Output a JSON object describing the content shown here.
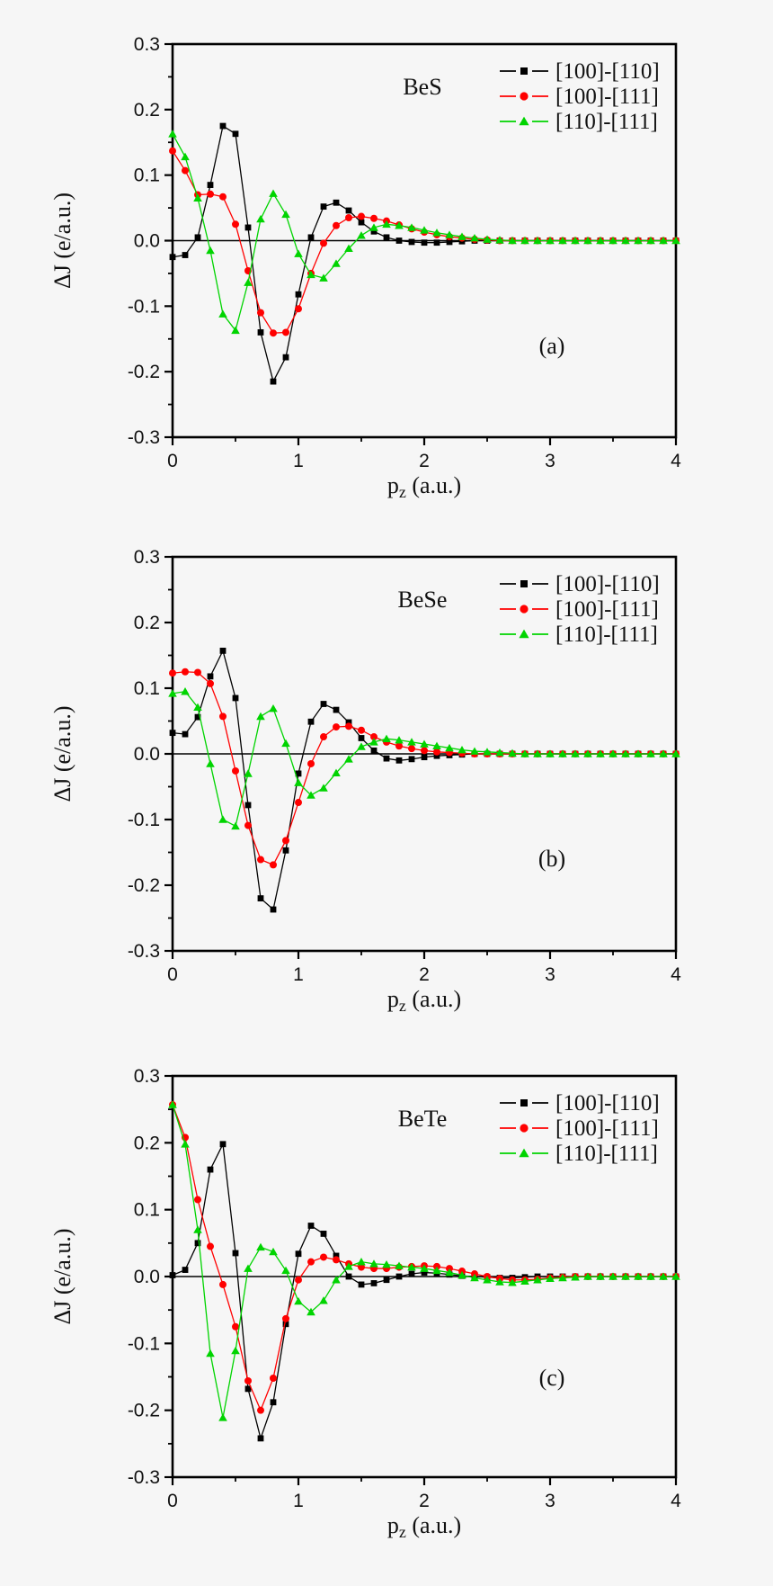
{
  "figure": {
    "background_color": "#f6f6f6",
    "frame_color": "#000000",
    "y_axis_label": "ΔJ (e/a.u.)",
    "x_axis_label_base": "p",
    "x_axis_label_sub": "z",
    "x_axis_label_unit": " (a.u.)",
    "y_tick_labels": [
      "0.3",
      "0.2",
      "0.1",
      "0.0",
      "-0.1",
      "-0.2",
      "-0.3"
    ],
    "x_tick_labels": [
      "0",
      "1",
      "2",
      "3",
      "4"
    ]
  },
  "chart_data": [
    {
      "type": "line",
      "title": "BeS",
      "panel_label": "(a)",
      "xlabel": "p_z (a.u.)",
      "ylabel": "ΔJ (e/a.u.)",
      "xlim": [
        0,
        4
      ],
      "ylim": [
        -0.3,
        0.3
      ],
      "x_start": 0,
      "x_step": 0.1,
      "grid": false,
      "legend_position": "top-right",
      "legend_entries": [
        "[100]-[110]",
        "[100]-[111]",
        "[110]-[111]"
      ],
      "series": [
        {
          "name": "[100]-[110]",
          "color": "#000000",
          "marker": "square",
          "values": [
            -0.025,
            -0.022,
            0.005,
            0.085,
            0.175,
            0.163,
            0.02,
            -0.14,
            -0.215,
            -0.178,
            -0.082,
            0.005,
            0.052,
            0.058,
            0.046,
            0.028,
            0.014,
            0.005,
            0.0,
            -0.002,
            -0.003,
            -0.003,
            -0.002,
            -0.001,
            0,
            0,
            0,
            0,
            0,
            0,
            0,
            0,
            0,
            0,
            0,
            0,
            0,
            0,
            0,
            0,
            0
          ]
        },
        {
          "name": "[100]-[111]",
          "color": "#ff0000",
          "marker": "circle",
          "values": [
            0.137,
            0.107,
            0.07,
            0.071,
            0.067,
            0.025,
            -0.046,
            -0.11,
            -0.141,
            -0.14,
            -0.104,
            -0.05,
            -0.004,
            0.023,
            0.035,
            0.037,
            0.034,
            0.03,
            0.024,
            0.018,
            0.013,
            0.009,
            0.006,
            0.004,
            0.002,
            0.001,
            0,
            0,
            0,
            0,
            0,
            0,
            0,
            0,
            0,
            0,
            0,
            0,
            0,
            0,
            0
          ]
        },
        {
          "name": "[110]-[111]",
          "color": "#00d400",
          "marker": "triangle",
          "values": [
            0.163,
            0.128,
            0.065,
            -0.015,
            -0.112,
            -0.137,
            -0.064,
            0.033,
            0.072,
            0.04,
            -0.02,
            -0.052,
            -0.057,
            -0.035,
            -0.012,
            0.008,
            0.02,
            0.025,
            0.023,
            0.02,
            0.016,
            0.012,
            0.009,
            0.006,
            0.004,
            0.002,
            0.001,
            0,
            0,
            0,
            0,
            0,
            0,
            0,
            0,
            0,
            0,
            0,
            0,
            0,
            0
          ]
        }
      ]
    },
    {
      "type": "line",
      "title": "BeSe",
      "panel_label": "(b)",
      "xlabel": "p_z (a.u.)",
      "ylabel": "ΔJ (e/a.u.)",
      "xlim": [
        0,
        4
      ],
      "ylim": [
        -0.3,
        0.3
      ],
      "x_start": 0,
      "x_step": 0.1,
      "grid": false,
      "legend_position": "top-right",
      "legend_entries": [
        "[100]-[110]",
        "[100]-[111]",
        "[110]-[111]"
      ],
      "series": [
        {
          "name": "[100]-[110]",
          "color": "#000000",
          "marker": "square",
          "values": [
            0.032,
            0.03,
            0.056,
            0.118,
            0.157,
            0.085,
            -0.078,
            -0.22,
            -0.237,
            -0.147,
            -0.03,
            0.049,
            0.076,
            0.067,
            0.048,
            0.024,
            0.005,
            -0.007,
            -0.01,
            -0.008,
            -0.005,
            -0.003,
            -0.002,
            -0.001,
            0,
            0,
            0,
            0,
            0,
            0,
            0,
            0,
            0,
            0,
            0,
            0,
            0,
            0,
            0,
            0,
            0
          ]
        },
        {
          "name": "[100]-[111]",
          "color": "#ff0000",
          "marker": "circle",
          "values": [
            0.123,
            0.125,
            0.124,
            0.107,
            0.057,
            -0.026,
            -0.109,
            -0.161,
            -0.169,
            -0.132,
            -0.074,
            -0.015,
            0.026,
            0.041,
            0.042,
            0.036,
            0.026,
            0.018,
            0.012,
            0.008,
            0.005,
            0.003,
            0.002,
            0.001,
            0,
            0,
            0,
            0,
            0,
            0,
            0,
            0,
            0,
            0,
            0,
            0,
            0,
            0,
            0,
            0,
            0
          ]
        },
        {
          "name": "[110]-[111]",
          "color": "#00d400",
          "marker": "triangle",
          "values": [
            0.092,
            0.095,
            0.071,
            -0.015,
            -0.1,
            -0.11,
            -0.03,
            0.057,
            0.069,
            0.016,
            -0.044,
            -0.063,
            -0.052,
            -0.029,
            -0.008,
            0.011,
            0.018,
            0.023,
            0.021,
            0.018,
            0.015,
            0.012,
            0.009,
            0.006,
            0.004,
            0.003,
            0.002,
            0.001,
            0,
            0,
            0,
            0,
            0,
            0,
            0,
            0,
            0,
            0,
            0,
            0,
            0
          ]
        }
      ]
    },
    {
      "type": "line",
      "title": "BeTe",
      "panel_label": "(c)",
      "xlabel": "p_z (a.u.)",
      "ylabel": "ΔJ (e/a.u.)",
      "xlim": [
        0,
        4
      ],
      "ylim": [
        -0.3,
        0.3
      ],
      "x_start": 0,
      "x_step": 0.1,
      "grid": false,
      "legend_position": "top-right",
      "legend_entries": [
        "[100]-[110]",
        "[100]-[111]",
        "[110]-[111]"
      ],
      "series": [
        {
          "name": "[100]-[110]",
          "color": "#000000",
          "marker": "square",
          "values": [
            0.002,
            0.01,
            0.05,
            0.16,
            0.198,
            0.035,
            -0.168,
            -0.242,
            -0.188,
            -0.071,
            0.034,
            0.076,
            0.064,
            0.031,
            0.0,
            -0.012,
            -0.01,
            -0.005,
            0.0,
            0.004,
            0.006,
            0.005,
            0.003,
            0.001,
            0,
            -0.001,
            -0.002,
            -0.002,
            -0.001,
            0,
            0,
            0,
            0,
            0,
            0,
            0,
            0,
            0,
            0,
            0,
            0
          ]
        },
        {
          "name": "[100]-[111]",
          "color": "#ff0000",
          "marker": "circle",
          "values": [
            0.257,
            0.208,
            0.115,
            0.045,
            -0.012,
            -0.075,
            -0.156,
            -0.2,
            -0.152,
            -0.063,
            -0.005,
            0.022,
            0.029,
            0.025,
            0.019,
            0.014,
            0.012,
            0.012,
            0.014,
            0.015,
            0.016,
            0.015,
            0.012,
            0.008,
            0.004,
            0.0,
            -0.003,
            -0.005,
            -0.005,
            -0.004,
            -0.002,
            -0.001,
            0,
            0,
            0,
            0,
            0,
            0,
            0,
            0,
            0
          ]
        },
        {
          "name": "[110]-[111]",
          "color": "#00d400",
          "marker": "triangle",
          "values": [
            0.257,
            0.198,
            0.07,
            -0.115,
            -0.211,
            -0.111,
            0.012,
            0.044,
            0.037,
            0.009,
            -0.037,
            -0.053,
            -0.036,
            -0.005,
            0.015,
            0.022,
            0.019,
            0.018,
            0.016,
            0.014,
            0.012,
            0.009,
            0.006,
            0.002,
            -0.002,
            -0.005,
            -0.008,
            -0.009,
            -0.007,
            -0.005,
            -0.003,
            -0.002,
            -0.001,
            0,
            0,
            0,
            0,
            0,
            0,
            0,
            0
          ]
        }
      ]
    }
  ]
}
